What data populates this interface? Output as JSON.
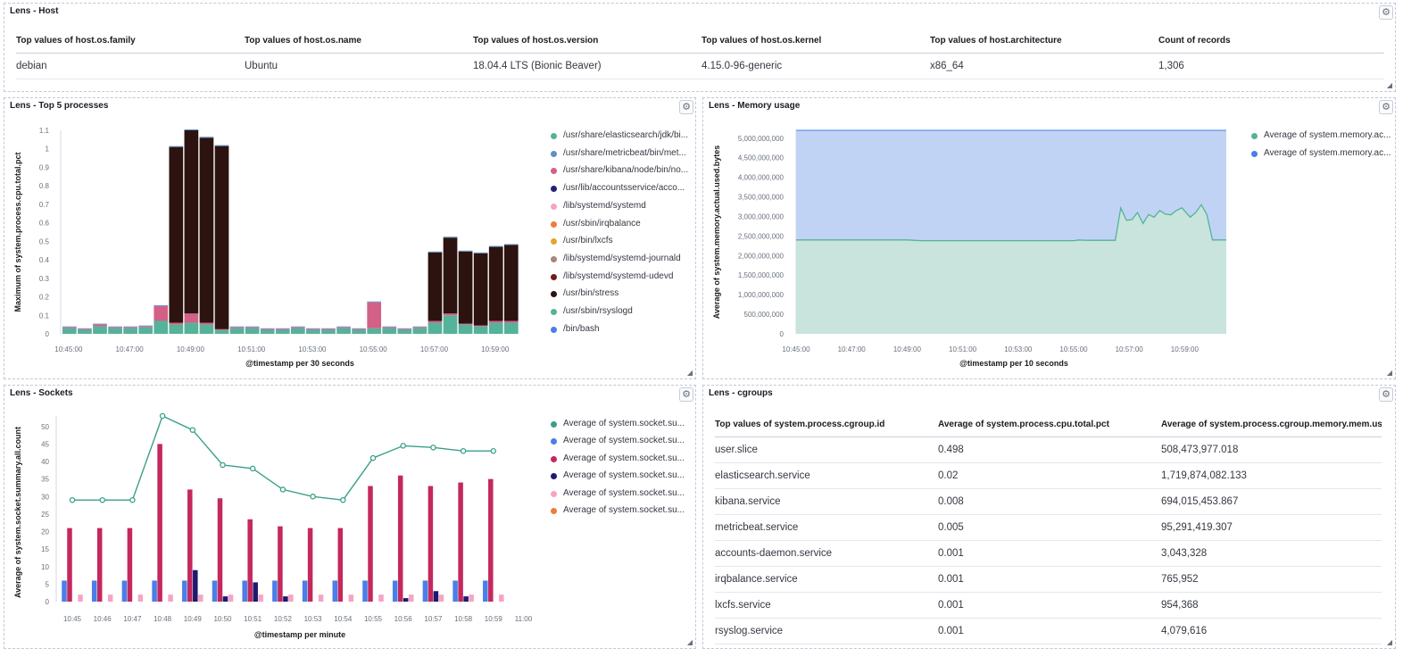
{
  "panels": {
    "host": {
      "title": "Lens - Host",
      "columns": [
        "Top values of host.os.family",
        "Top values of host.os.name",
        "Top values of host.os.version",
        "Top values of host.os.kernel",
        "Top values of host.architecture",
        "Count of records"
      ],
      "rows": [
        [
          "debian",
          "Ubuntu",
          "18.04.4 LTS (Bionic Beaver)",
          "4.15.0-96-generic",
          "x86_64",
          "1,306"
        ]
      ]
    },
    "processes": {
      "title": "Lens - Top 5 processes",
      "legend": [
        {
          "label": "/usr/share/elasticsearch/jdk/bi...",
          "color": "#54b399"
        },
        {
          "label": "/usr/share/metricbeat/bin/met...",
          "color": "#6092c0"
        },
        {
          "label": "/usr/share/kibana/node/bin/no...",
          "color": "#d36086"
        },
        {
          "label": "/usr/lib/accountsservice/acco...",
          "color": "#251f7c"
        },
        {
          "label": "/lib/systemd/systemd",
          "color": "#f5a4c8"
        },
        {
          "label": "/usr/sbin/irqbalance",
          "color": "#ee7d39"
        },
        {
          "label": "/usr/bin/lxcfs",
          "color": "#e4a530"
        },
        {
          "label": "/lib/systemd/systemd-journald",
          "color": "#a8867a"
        },
        {
          "label": "/lib/systemd/systemd-udevd",
          "color": "#6b1e1e"
        },
        {
          "label": "/usr/bin/stress",
          "color": "#2c1310"
        },
        {
          "label": "/usr/sbin/rsyslogd",
          "color": "#54b399"
        },
        {
          "label": "/bin/bash",
          "color": "#4a7ee8"
        }
      ]
    },
    "memory": {
      "title": "Lens - Memory usage",
      "legend": [
        {
          "label": "Average of system.memory.ac...",
          "color": "#54b399"
        },
        {
          "label": "Average of system.memory.ac...",
          "color": "#4a7ee8"
        }
      ]
    },
    "sockets": {
      "title": "Lens - Sockets",
      "legend": [
        {
          "label": "Average of system.socket.su...",
          "color": "#3a9f89"
        },
        {
          "label": "Average of system.socket.su...",
          "color": "#4a7ee8"
        },
        {
          "label": "Average of system.socket.su...",
          "color": "#c4285e"
        },
        {
          "label": "Average of system.socket.su...",
          "color": "#1e1a6e"
        },
        {
          "label": "Average of system.socket.su...",
          "color": "#f5a4c8"
        },
        {
          "label": "Average of system.socket.su...",
          "color": "#ee7d39"
        }
      ]
    },
    "cgroups": {
      "title": "Lens - cgroups",
      "columns": [
        "Top values of system.process.cgroup.id",
        "Average of system.process.cpu.total.pct",
        "Average of system.process.cgroup.memory.mem.us..."
      ],
      "rows": [
        [
          "user.slice",
          "0.498",
          "508,473,977.018"
        ],
        [
          "elasticsearch.service",
          "0.02",
          "1,719,874,082.133"
        ],
        [
          "kibana.service",
          "0.008",
          "694,015,453.867"
        ],
        [
          "metricbeat.service",
          "0.005",
          "95,291,419.307"
        ],
        [
          "accounts-daemon.service",
          "0.001",
          "3,043,328"
        ],
        [
          "irqbalance.service",
          "0.001",
          "765,952"
        ],
        [
          "lxcfs.service",
          "0.001",
          "954,368"
        ],
        [
          "rsyslog.service",
          "0.001",
          "4,079,616"
        ]
      ]
    }
  },
  "chart_data": [
    {
      "id": "processes",
      "type": "bar",
      "stacked": true,
      "xlabel": "@timestamp per 30 seconds",
      "ylabel": "Maximum of system.process.cpu.total.pct",
      "ylim": [
        0,
        1.1
      ],
      "yticks": [
        "0",
        "0.1",
        "0.2",
        "0.3",
        "0.4",
        "0.5",
        "0.6",
        "0.7",
        "0.8",
        "0.9",
        "1",
        "1.1"
      ],
      "xticks": [
        "10:45:00",
        "10:47:00",
        "10:49:00",
        "10:51:00",
        "10:53:00",
        "10:55:00",
        "10:57:00",
        "10:59:00"
      ],
      "categories": [
        "10:45:00",
        "10:45:30",
        "10:46:00",
        "10:46:30",
        "10:47:00",
        "10:47:30",
        "10:48:00",
        "10:48:30",
        "10:49:00",
        "10:49:30",
        "10:50:00",
        "10:50:30",
        "10:51:00",
        "10:51:30",
        "10:52:00",
        "10:52:30",
        "10:53:00",
        "10:53:30",
        "10:54:00",
        "10:54:30",
        "10:55:00",
        "10:55:30",
        "10:56:00",
        "10:56:30",
        "10:57:00",
        "10:57:30",
        "10:58:00",
        "10:58:30",
        "10:59:00",
        "10:59:30"
      ],
      "series": [
        {
          "name": "/usr/share/elasticsearch/jdk/bi...",
          "color": "#54b399",
          "values": [
            0.03,
            0.02,
            0.04,
            0.03,
            0.03,
            0.035,
            0.07,
            0.05,
            0.06,
            0.05,
            0.02,
            0.03,
            0.03,
            0.02,
            0.02,
            0.03,
            0.02,
            0.02,
            0.03,
            0.02,
            0.03,
            0.03,
            0.02,
            0.03,
            0.06,
            0.1,
            0.05,
            0.04,
            0.06,
            0.06
          ]
        },
        {
          "name": "/usr/share/kibana/node/bin/no...",
          "color": "#d36086",
          "values": [
            0.005,
            0.005,
            0.01,
            0.005,
            0.005,
            0.005,
            0.08,
            0.01,
            0.05,
            0.01,
            0.005,
            0.005,
            0.005,
            0.005,
            0.005,
            0.005,
            0.005,
            0.005,
            0.005,
            0.005,
            0.14,
            0.005,
            0.005,
            0.005,
            0.01,
            0.01,
            0.005,
            0.005,
            0.01,
            0.01
          ]
        },
        {
          "name": "/usr/bin/stress",
          "color": "#2c1310",
          "values": [
            0,
            0,
            0,
            0,
            0,
            0,
            0,
            0.95,
            0.99,
            1.0,
            0.99,
            0,
            0,
            0,
            0,
            0,
            0,
            0,
            0,
            0,
            0,
            0,
            0,
            0,
            0.37,
            0.41,
            0.39,
            0.39,
            0.4,
            0.41
          ]
        },
        {
          "name": "/usr/share/metricbeat/bin/met...",
          "color": "#6092c0",
          "values": [
            0.005,
            0.005,
            0.005,
            0.005,
            0.005,
            0.005,
            0.005,
            0.005,
            0.005,
            0.005,
            0.005,
            0.005,
            0.005,
            0.005,
            0.005,
            0.005,
            0.005,
            0.005,
            0.005,
            0.005,
            0.005,
            0.005,
            0.005,
            0.005,
            0.005,
            0.005,
            0.005,
            0.005,
            0.005,
            0.005
          ]
        }
      ]
    },
    {
      "id": "memory",
      "type": "area",
      "xlabel": "@timestamp per 10 seconds",
      "ylabel": "Average of system.memory.actual.used.bytes",
      "ylim": [
        0,
        5200000000
      ],
      "yticks": [
        "0",
        "500,000,000",
        "1,000,000,000",
        "1,500,000,000",
        "2,000,000,000",
        "2,500,000,000",
        "3,000,000,000",
        "3,500,000,000",
        "4,000,000,000",
        "4,500,000,000",
        "5,000,000,000"
      ],
      "xticks": [
        "10:45:00",
        "10:47:00",
        "10:49:00",
        "10:51:00",
        "10:53:00",
        "10:55:00",
        "10:57:00",
        "10:59:00"
      ],
      "series": [
        {
          "name": "Average of system.memory.ac...",
          "color": "#54b399",
          "x_minutes": [
            0,
            2,
            3,
            4,
            4.5,
            5,
            10,
            10.2,
            10.4,
            10.6,
            11,
            11.2,
            11.5,
            11.7,
            11.9,
            12.1,
            12.3,
            12.5,
            12.7,
            12.9,
            13.1,
            13.3,
            13.5,
            13.7,
            13.9,
            14.2,
            14.4,
            14.6,
            14.8,
            15.0,
            15.2,
            15.5
          ],
          "values": [
            2400000000,
            2400000000,
            2400000000,
            2400000000,
            2380000000,
            2380000000,
            2380000000,
            2400000000,
            2390000000,
            2390000000,
            2390000000,
            2390000000,
            2390000000,
            3220000000,
            2900000000,
            2920000000,
            3100000000,
            2820000000,
            3050000000,
            2980000000,
            3150000000,
            3060000000,
            3040000000,
            3150000000,
            3220000000,
            2980000000,
            3100000000,
            3300000000,
            3050000000,
            2400000000,
            2400000000,
            2400000000
          ]
        },
        {
          "name": "Average of system.memory.ac...",
          "color": "#4a7ee8",
          "x_minutes": [
            0,
            15.5
          ],
          "values": [
            5200000000,
            5200000000
          ]
        }
      ]
    },
    {
      "id": "sockets",
      "type": "bar",
      "xlabel": "@timestamp per minute",
      "ylabel": "Average of system.socket.summary.all.count",
      "ylim": [
        0,
        53
      ],
      "yticks": [
        "0",
        "5",
        "10",
        "15",
        "20",
        "25",
        "30",
        "35",
        "40",
        "45",
        "50"
      ],
      "categories": [
        "10:45",
        "10:46",
        "10:47",
        "10:48",
        "10:49",
        "10:50",
        "10:51",
        "10:52",
        "10:53",
        "10:54",
        "10:55",
        "10:56",
        "10:57",
        "10:58",
        "10:59",
        "11:00"
      ],
      "series": [
        {
          "name": "Average of system.socket.su...",
          "color": "#3a9f89",
          "chart": "line",
          "values": [
            29,
            29,
            29,
            53,
            49,
            39,
            38,
            32,
            30,
            29,
            41,
            44.5,
            44,
            43,
            43,
            null
          ]
        },
        {
          "name": "Average of system.socket.su...",
          "color": "#4a7ee8",
          "values": [
            6,
            6,
            6,
            6,
            6,
            6,
            6,
            6,
            6,
            6,
            6,
            6,
            6,
            6,
            6,
            null
          ]
        },
        {
          "name": "Average of system.socket.su...",
          "color": "#c4285e",
          "values": [
            21,
            21,
            21,
            45,
            32,
            29.5,
            23.5,
            21.5,
            21,
            21,
            33,
            36,
            33,
            34,
            35,
            null
          ]
        },
        {
          "name": "Average of system.socket.su...",
          "color": "#1e1a6e",
          "values": [
            0,
            0,
            0,
            0,
            9,
            1.5,
            5.5,
            1.5,
            0,
            0,
            0,
            1,
            3,
            1.5,
            0,
            null
          ]
        },
        {
          "name": "Average of system.socket.su...",
          "color": "#f5a4c8",
          "values": [
            2,
            2,
            2,
            2,
            2,
            2,
            2,
            2,
            2,
            2,
            2,
            2,
            2,
            2,
            2,
            null
          ]
        }
      ]
    }
  ]
}
